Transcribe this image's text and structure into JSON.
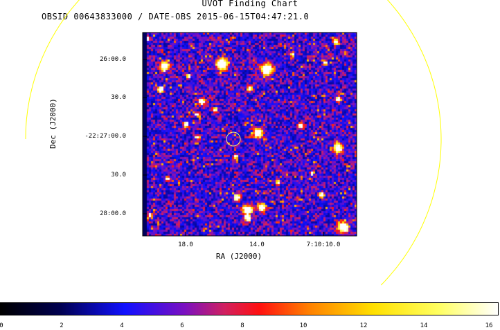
{
  "title": "UVOT Finding Chart",
  "subtitle": "OBSID 00643833000 / DATE-OBS 2015-06-15T04:47:21.0",
  "axes": {
    "xlabel": "RA (J2000)",
    "ylabel": "Dec (J2000)",
    "xticks": [
      "18.0",
      "14.0",
      "7:10:10.0"
    ],
    "yticks": [
      "26:00.0",
      "30.0",
      "-22:27:00.0",
      "30.0",
      "28:00.0"
    ]
  },
  "colorbar": {
    "ticks": [
      "0",
      "2",
      "4",
      "6",
      "8",
      "10",
      "12",
      "14",
      "16"
    ],
    "min": 0,
    "max": 16
  },
  "colors": {
    "circle": "#ffff00",
    "frame": "#000000"
  }
}
